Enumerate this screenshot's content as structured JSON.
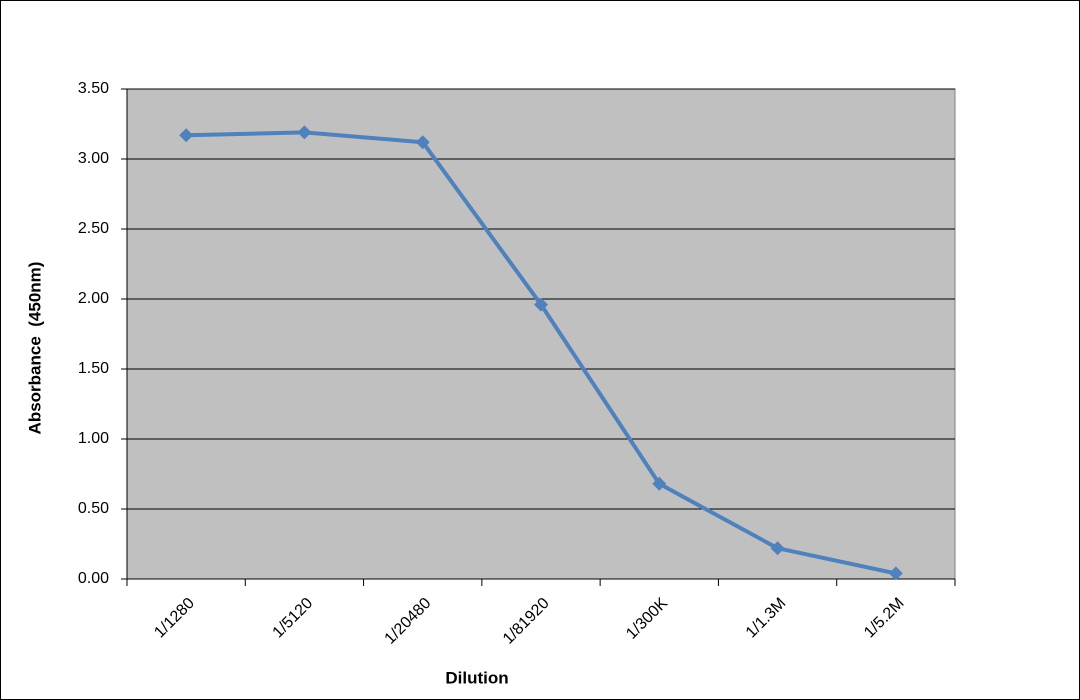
{
  "chart_data": {
    "type": "line",
    "x_label": "Dilution",
    "y_label": "Absorbance  (450nm)",
    "categories": [
      "1/1280",
      "1/5120",
      "1/20480",
      "1/81920",
      "1/300K",
      "1/1.3M",
      "1/5.2M"
    ],
    "values": [
      3.17,
      3.19,
      3.12,
      1.96,
      0.68,
      0.22,
      0.04
    ],
    "color": "#4f81bd",
    "ylim": [
      0,
      3.5
    ],
    "yticks": [
      {
        "value": 0,
        "label": "0.00"
      },
      {
        "value": 0.5,
        "label": "0.50"
      },
      {
        "value": 1,
        "label": "1.00"
      },
      {
        "value": 1.5,
        "label": "1.50"
      },
      {
        "value": 2,
        "label": "2.00"
      },
      {
        "value": 2.5,
        "label": "2.50"
      },
      {
        "value": 3,
        "label": "3.00"
      },
      {
        "value": 3.5,
        "label": "3.50"
      }
    ],
    "grid": true
  }
}
